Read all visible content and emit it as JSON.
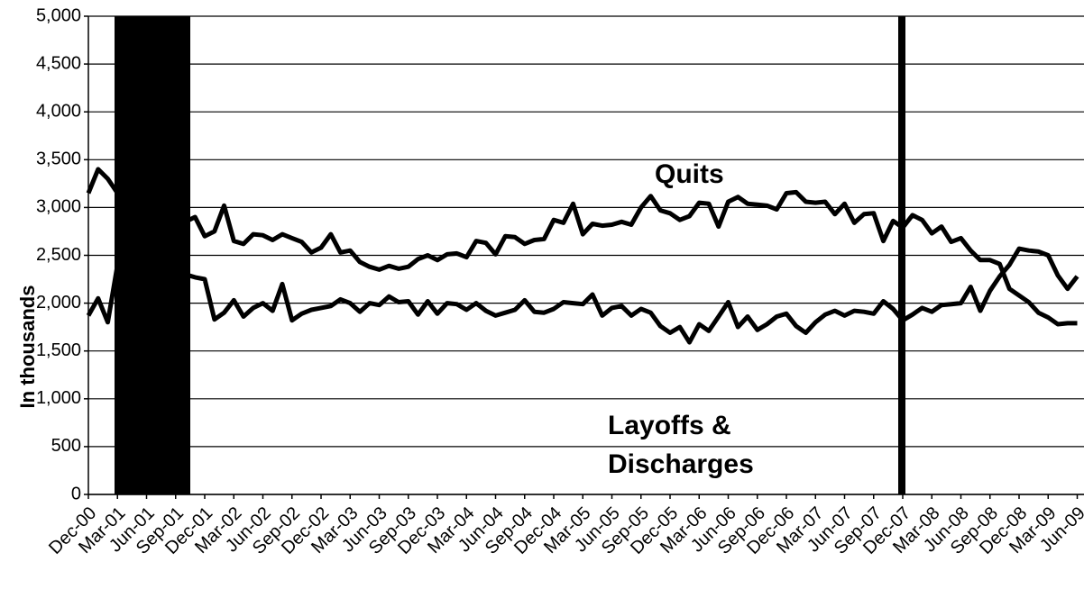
{
  "chart_data": {
    "type": "line",
    "y_label": "In thousands",
    "categories": [
      "Dec-00",
      null,
      null,
      "Mar-01",
      null,
      null,
      "Jun-01",
      null,
      null,
      "Sep-01",
      null,
      null,
      "Dec-01",
      null,
      null,
      "Mar-02",
      null,
      null,
      "Jun-02",
      null,
      null,
      "Sep-02",
      null,
      null,
      "Dec-02",
      null,
      null,
      "Mar-03",
      null,
      null,
      "Jun-03",
      null,
      null,
      "Sep-03",
      null,
      null,
      "Dec-03",
      null,
      null,
      "Mar-04",
      null,
      null,
      "Jun-04",
      null,
      null,
      "Sep-04",
      null,
      null,
      "Dec-04",
      null,
      null,
      "Mar-05",
      null,
      null,
      "Jun-05",
      null,
      null,
      "Sep-05",
      null,
      null,
      "Dec-05",
      null,
      null,
      "Mar-06",
      null,
      null,
      "Jun-06",
      null,
      null,
      "Sep-06",
      null,
      null,
      "Dec-06",
      null,
      null,
      "Mar-07",
      null,
      null,
      "Jun-07",
      null,
      null,
      "Sep-07",
      null,
      null,
      "Dec-07",
      null,
      null,
      "Mar-08",
      null,
      null,
      "Jun-08",
      null,
      null,
      "Sep-08",
      null,
      null,
      "Dec-08",
      null,
      null,
      "Mar-09",
      null,
      null,
      "Jun-09"
    ],
    "series": [
      {
        "name": "Quits",
        "color": "#000000",
        "values": [
          3150,
          3400,
          3300,
          3150,
          3100,
          3050,
          3000,
          2950,
          2900,
          2900,
          2850,
          2900,
          2700,
          2750,
          3020,
          2650,
          2620,
          2720,
          2710,
          2660,
          2720,
          2680,
          2640,
          2530,
          2580,
          2720,
          2530,
          2550,
          2430,
          2380,
          2350,
          2390,
          2360,
          2380,
          2460,
          2500,
          2450,
          2510,
          2520,
          2480,
          2650,
          2630,
          2510,
          2700,
          2690,
          2620,
          2660,
          2670,
          2870,
          2840,
          3040,
          2720,
          2830,
          2810,
          2820,
          2850,
          2820,
          3000,
          3120,
          2970,
          2940,
          2870,
          2910,
          3050,
          3040,
          2800,
          3060,
          3110,
          3040,
          3030,
          3020,
          2980,
          3150,
          3160,
          3060,
          3050,
          3060,
          2930,
          3040,
          2840,
          2930,
          2940,
          2650,
          2860,
          2790,
          2920,
          2870,
          2730,
          2800,
          2640,
          2680,
          2550,
          2450,
          2450,
          2410,
          2150,
          2080,
          2010,
          1900,
          1850,
          1780,
          1790,
          1790
        ]
      },
      {
        "name": "Layoffs & Discharges",
        "color": "#000000",
        "values": [
          1870,
          2050,
          1800,
          2400,
          2300,
          2300,
          2300,
          2300,
          2300,
          2300,
          2300,
          2270,
          2250,
          1830,
          1900,
          2030,
          1860,
          1950,
          2000,
          1920,
          2200,
          1820,
          1890,
          1930,
          1950,
          1970,
          2040,
          2000,
          1910,
          2000,
          1980,
          2070,
          2010,
          2020,
          1880,
          2020,
          1890,
          2000,
          1990,
          1930,
          2000,
          1920,
          1870,
          1900,
          1930,
          2030,
          1910,
          1900,
          1940,
          2010,
          2000,
          1990,
          2090,
          1870,
          1950,
          1970,
          1870,
          1940,
          1900,
          1760,
          1690,
          1750,
          1590,
          1780,
          1710,
          1860,
          2010,
          1750,
          1860,
          1720,
          1780,
          1860,
          1890,
          1760,
          1690,
          1800,
          1880,
          1920,
          1870,
          1920,
          1910,
          1890,
          2020,
          1940,
          1820,
          1880,
          1950,
          1910,
          1980,
          1990,
          2000,
          2170,
          1920,
          2130,
          2280,
          2400,
          2570,
          2550,
          2540,
          2500,
          2290,
          2150,
          2280
        ]
      }
    ],
    "ylim": [
      0,
      5000
    ],
    "yticks": [
      0,
      500,
      {
        "value": 1000,
        "label": "1,000"
      },
      {
        "value": 1500,
        "label": "1,500"
      },
      {
        "value": 2000,
        "label": "2,000"
      },
      {
        "value": 2500,
        "label": "2,500"
      },
      {
        "value": 3000,
        "label": "3,000"
      },
      {
        "value": 3500,
        "label": "3,500"
      },
      {
        "value": 4000,
        "label": "4,000"
      },
      {
        "value": 4500,
        "label": "4,500"
      },
      {
        "value": 5000,
        "label": "5,000"
      }
    ],
    "grid": true
  }
}
